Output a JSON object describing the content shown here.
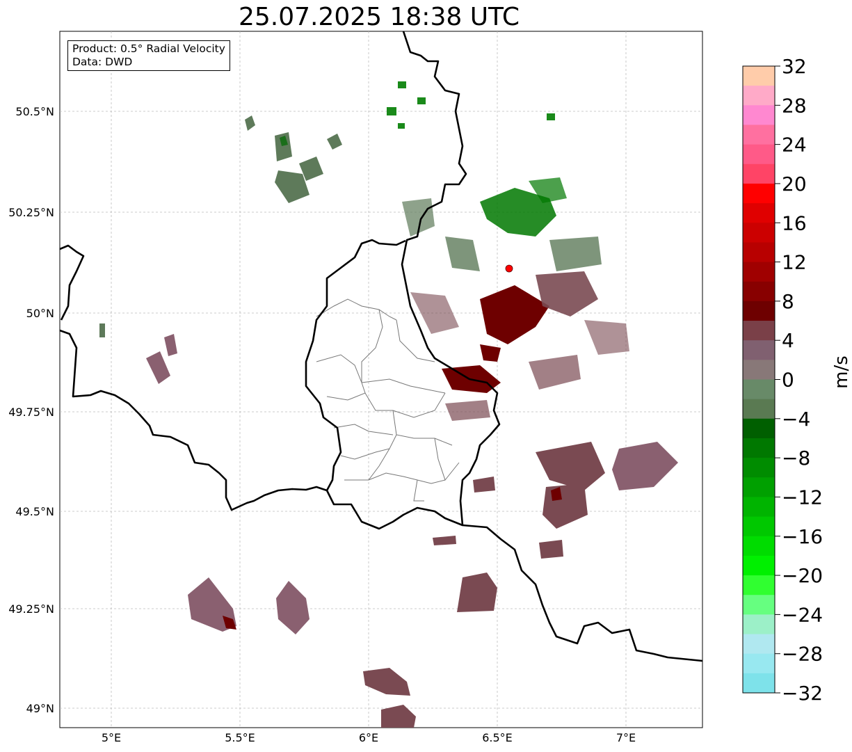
{
  "title": "25.07.2025 18:38 UTC",
  "info": {
    "product": "Product: 0.5° Radial Velocity",
    "data": "Data: DWD"
  },
  "axes": {
    "lon_ticks": [
      "5°E",
      "5.5°E",
      "6°E",
      "6.5°E",
      "7°E"
    ],
    "lat_ticks": [
      "49°N",
      "49.25°N",
      "49.5°N",
      "49.75°N",
      "50°N",
      "50.25°N",
      "50.5°N"
    ]
  },
  "colorbar": {
    "unit": "m/s",
    "ticks": [
      "32",
      "28",
      "24",
      "20",
      "16",
      "12",
      "8",
      "4",
      "0",
      "−4",
      "−8",
      "−12",
      "−16",
      "−20",
      "−24",
      "−28",
      "−32"
    ],
    "colors_top_to_bottom": [
      "#ffccaa",
      "#ffaac8",
      "#ff88d0",
      "#ff70a0",
      "#ff5a88",
      "#ff4466",
      "#ff0000",
      "#e00000",
      "#cc0000",
      "#b80000",
      "#a00000",
      "#880000",
      "#6e0000",
      "#7a4048",
      "#806070",
      "#887878",
      "#688a68",
      "#5a7a52",
      "#005f00",
      "#007800",
      "#008c00",
      "#00a000",
      "#00b400",
      "#00c800",
      "#00dc00",
      "#00f000",
      "#30ff30",
      "#66ff80",
      "#9cf0c8",
      "#b0e8f0",
      "#98e8f0",
      "#7ee2ea"
    ]
  },
  "radar_site": {
    "color": "#ff0000"
  },
  "colors": {
    "green_dark": "#1a6e1a",
    "green_gray": "#5e7a5a",
    "maroon": "#6e0000",
    "mauve": "#7a4a52",
    "mauve_light": "#8a6070"
  }
}
